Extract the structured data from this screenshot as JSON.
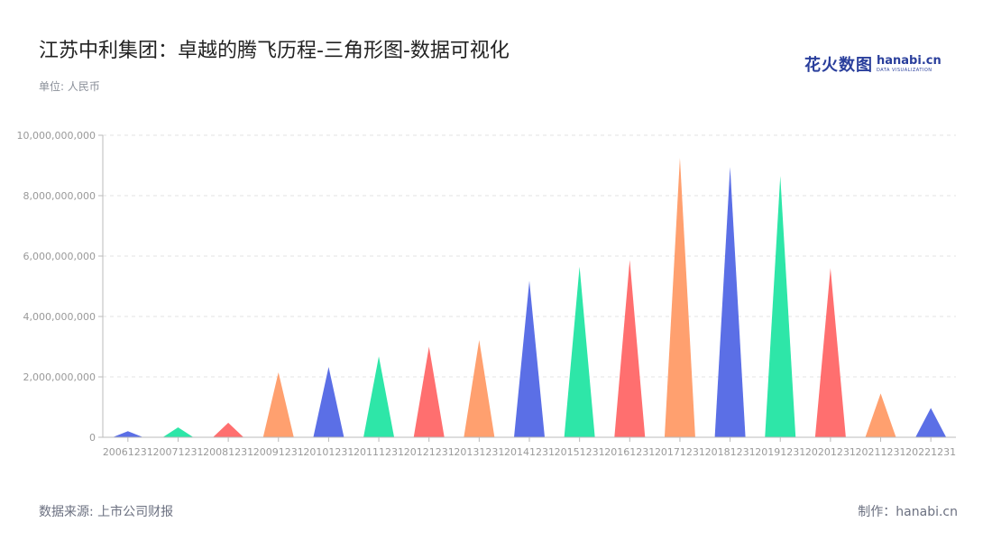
{
  "header": {
    "title": "江苏中利集团：卓越的腾飞历程-三角形图-数据可视化",
    "unit": "单位: 人民币"
  },
  "logo": {
    "cn": "花火数图",
    "en": "hanabi.cn",
    "sub": "DATA VISUALIZATION"
  },
  "footer": {
    "source": "数据来源: 上市公司财报",
    "credit": "制作：hanabi.cn"
  },
  "chart_data": {
    "type": "bar",
    "style": "triangle",
    "categories": [
      "20061231",
      "20071231",
      "20081231",
      "20091231",
      "20101231",
      "20111231",
      "20121231",
      "20131231",
      "20141231",
      "20151231",
      "20161231",
      "20171231",
      "20181231",
      "20191231",
      "20201231",
      "20211231",
      "20221231"
    ],
    "values": [
      200000000,
      330000000,
      480000000,
      2150000000,
      2330000000,
      2680000000,
      3000000000,
      3220000000,
      5180000000,
      5650000000,
      5870000000,
      9250000000,
      8950000000,
      8650000000,
      5600000000,
      1450000000,
      970000000
    ],
    "colors": [
      "#5b6fe6",
      "#2ee6a8",
      "#ff6f6f",
      "#ffa06f"
    ],
    "y_ticks": [
      0,
      2000000000,
      4000000000,
      6000000000,
      8000000000,
      10000000000
    ],
    "y_tick_labels": [
      "0",
      "2,000,000,000",
      "4,000,000,000",
      "6,000,000,000",
      "8,000,000,000",
      "10,000,000,000"
    ],
    "ylim": [
      0,
      10000000000
    ],
    "grid": true
  }
}
